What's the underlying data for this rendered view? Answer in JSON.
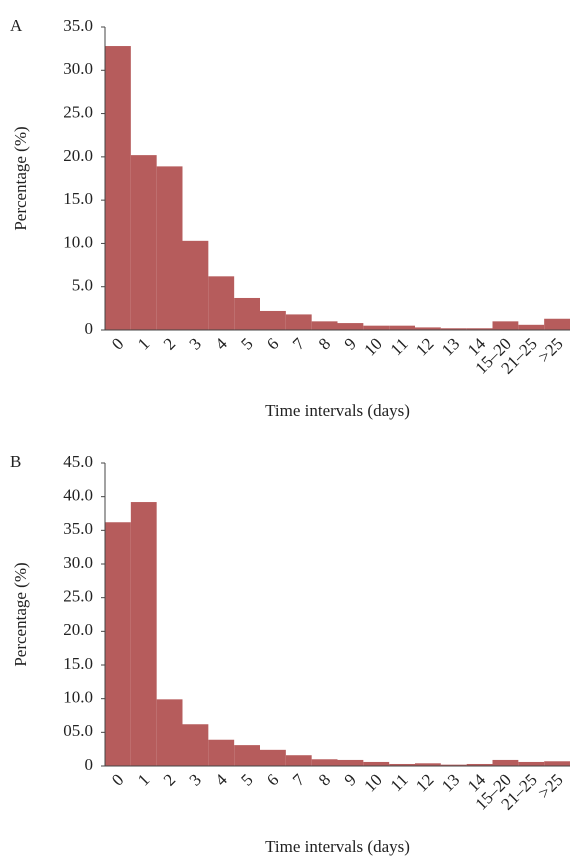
{
  "chart_data": [
    {
      "type": "bar",
      "panel_label": "A",
      "ylabel": "Percentage (%)",
      "xlabel": "Time intervals (days)",
      "categories": [
        "0",
        "1",
        "2",
        "3",
        "4",
        "5",
        "6",
        "7",
        "8",
        "9",
        "10",
        "11",
        "12",
        "13",
        "14",
        "15–20",
        "21–25",
        ">25"
      ],
      "values": [
        32.8,
        20.2,
        18.9,
        10.3,
        6.2,
        3.7,
        2.2,
        1.8,
        1.0,
        0.8,
        0.5,
        0.5,
        0.3,
        0.2,
        0.2,
        1.0,
        0.6,
        1.3
      ],
      "color": "#b65c5c",
      "ylim": [
        0,
        35
      ],
      "yticks": [
        0,
        {
          "value": 5,
          "label": "5.0"
        },
        {
          "value": 10,
          "label": "10.0"
        },
        {
          "value": 15,
          "label": "15.0"
        },
        {
          "value": 20,
          "label": "20.0"
        },
        {
          "value": 25,
          "label": "25.0"
        },
        {
          "value": 30,
          "label": "30.0"
        },
        {
          "value": 35,
          "label": "35.0"
        }
      ]
    },
    {
      "type": "bar",
      "panel_label": "B",
      "ylabel": "Percentage (%)",
      "xlabel": "Time intervals (days)",
      "categories": [
        "0",
        "1",
        "2",
        "3",
        "4",
        "5",
        "6",
        "7",
        "8",
        "9",
        "10",
        "11",
        "12",
        "13",
        "14",
        "15–20",
        "21–25",
        ">25"
      ],
      "values": [
        36.2,
        39.2,
        9.9,
        6.2,
        3.9,
        3.1,
        2.4,
        1.6,
        1.0,
        0.9,
        0.6,
        0.3,
        0.4,
        0.2,
        0.3,
        0.9,
        0.6,
        0.7
      ],
      "color": "#b65c5c",
      "ylim": [
        0,
        45
      ],
      "yticks": [
        0,
        {
          "value": 5,
          "label": "05.0"
        },
        {
          "value": 10,
          "label": "10.0"
        },
        {
          "value": 15,
          "label": "15.0"
        },
        {
          "value": 20,
          "label": "20.0"
        },
        {
          "value": 25,
          "label": "25.0"
        },
        {
          "value": 30,
          "label": "30.0"
        },
        {
          "value": 35,
          "label": "35.0"
        },
        {
          "value": 40,
          "label": "40.0"
        },
        {
          "value": 45,
          "label": "45.0"
        }
      ]
    }
  ]
}
